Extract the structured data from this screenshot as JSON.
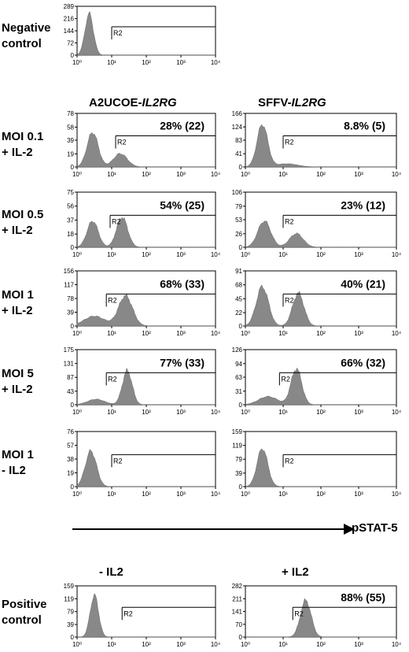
{
  "figure": {
    "col_headers": {
      "left_prefix": "A2UCOE-",
      "left_gene": "IL2RG",
      "right_prefix": "SFFV-",
      "right_gene": "IL2RG"
    },
    "row_labels": {
      "negative": [
        "Negative",
        "control"
      ],
      "moi01": [
        "MOI 0.1",
        "+ IL-2"
      ],
      "moi05": [
        "MOI 0.5",
        "+ IL-2"
      ],
      "moi1": [
        "MOI 1",
        "+ IL-2"
      ],
      "moi5": [
        "MOI 5",
        "+ IL-2"
      ],
      "moi1n": [
        "MOI 1",
        "- IL2"
      ],
      "positive": [
        "Positive",
        "control"
      ]
    },
    "arrow_label": "pSTAT-5",
    "pos_headers": {
      "minus": "- IL2",
      "plus": "+ IL2"
    }
  },
  "chart_data": [
    {
      "id": "neg",
      "type": "area",
      "scale": "log",
      "xlim": [
        1,
        10000
      ],
      "xticks": [
        "10⁰",
        "10¹",
        "10²",
        "10³",
        "10⁴"
      ],
      "yticks": [
        0,
        72,
        144,
        216,
        289
      ],
      "ylim": [
        0,
        289
      ],
      "gate": {
        "label": "R2",
        "start": 10
      },
      "annotation": "",
      "peaks": [
        {
          "center": 0.35,
          "width": 0.12,
          "height": 0.85
        }
      ]
    },
    {
      "id": "a01",
      "type": "area",
      "scale": "log",
      "xlim": [
        1,
        10000
      ],
      "xticks": [
        "10⁰",
        "10¹",
        "10²",
        "10³",
        "10⁴"
      ],
      "yticks": [
        0,
        19,
        39,
        58,
        78
      ],
      "ylim": [
        0,
        78
      ],
      "gate": {
        "label": "R2",
        "start": 13
      },
      "annotation": "28% (22)",
      "peaks": [
        {
          "center": 0.45,
          "width": 0.16,
          "height": 0.65
        },
        {
          "center": 1.25,
          "width": 0.2,
          "height": 0.25
        }
      ]
    },
    {
      "id": "s01",
      "type": "area",
      "scale": "log",
      "xlim": [
        1,
        10000
      ],
      "xticks": [
        "10⁰",
        "10¹",
        "10²",
        "10³",
        "10⁴"
      ],
      "yticks": [
        0,
        41,
        83,
        124,
        166
      ],
      "ylim": [
        0,
        166
      ],
      "gate": {
        "label": "R2",
        "start": 10
      },
      "annotation": "8.8% (5)",
      "peaks": [
        {
          "center": 0.45,
          "width": 0.14,
          "height": 0.8
        },
        {
          "center": 1.1,
          "width": 0.28,
          "height": 0.06
        }
      ]
    },
    {
      "id": "a05",
      "type": "area",
      "scale": "log",
      "xlim": [
        1,
        10000
      ],
      "xticks": [
        "10⁰",
        "10¹",
        "10²",
        "10³",
        "10⁴"
      ],
      "yticks": [
        0,
        18,
        37,
        56,
        75
      ],
      "ylim": [
        0,
        75
      ],
      "gate": {
        "label": "R2",
        "start": 9
      },
      "annotation": "54% (25)",
      "peaks": [
        {
          "center": 0.45,
          "width": 0.16,
          "height": 0.48
        },
        {
          "center": 1.3,
          "width": 0.16,
          "height": 0.55
        }
      ]
    },
    {
      "id": "s05",
      "type": "area",
      "scale": "log",
      "xlim": [
        1,
        10000
      ],
      "xticks": [
        "10⁰",
        "10¹",
        "10²",
        "10³",
        "10⁴"
      ],
      "yticks": [
        0,
        26,
        53,
        79,
        106
      ],
      "ylim": [
        0,
        106
      ],
      "gate": {
        "label": "R2",
        "start": 10
      },
      "annotation": "23% (12)",
      "peaks": [
        {
          "center": 0.5,
          "width": 0.17,
          "height": 0.48
        },
        {
          "center": 1.35,
          "width": 0.18,
          "height": 0.25
        }
      ]
    },
    {
      "id": "a1",
      "type": "area",
      "scale": "log",
      "xlim": [
        1,
        10000
      ],
      "xticks": [
        "10⁰",
        "10¹",
        "10²",
        "10³",
        "10⁴"
      ],
      "yticks": [
        0,
        39,
        78,
        117,
        156
      ],
      "ylim": [
        0,
        156
      ],
      "gate": {
        "label": "R2",
        "start": 7
      },
      "annotation": "68% (33)",
      "peaks": [
        {
          "center": 0.5,
          "width": 0.3,
          "height": 0.18
        },
        {
          "center": 1.4,
          "width": 0.2,
          "height": 0.55
        }
      ]
    },
    {
      "id": "s1",
      "type": "area",
      "scale": "log",
      "xlim": [
        1,
        10000
      ],
      "xticks": [
        "10⁰",
        "10¹",
        "10²",
        "10³",
        "10⁴"
      ],
      "yticks": [
        0,
        22,
        45,
        68,
        91
      ],
      "ylim": [
        0,
        91
      ],
      "gate": {
        "label": "R2",
        "start": 10
      },
      "annotation": "40% (21)",
      "peaks": [
        {
          "center": 0.45,
          "width": 0.16,
          "height": 0.72
        },
        {
          "center": 1.4,
          "width": 0.15,
          "height": 0.6
        }
      ]
    },
    {
      "id": "a5",
      "type": "area",
      "scale": "log",
      "xlim": [
        1,
        10000
      ],
      "xticks": [
        "10⁰",
        "10¹",
        "10²",
        "10³",
        "10⁴"
      ],
      "yticks": [
        0,
        43,
        87,
        131,
        175
      ],
      "ylim": [
        0,
        175
      ],
      "gate": {
        "label": "R2",
        "start": 7
      },
      "annotation": "77% (33)",
      "peaks": [
        {
          "center": 0.55,
          "width": 0.25,
          "height": 0.1
        },
        {
          "center": 1.45,
          "width": 0.14,
          "height": 0.62
        }
      ]
    },
    {
      "id": "s5",
      "type": "area",
      "scale": "log",
      "xlim": [
        1,
        10000
      ],
      "xticks": [
        "10⁰",
        "10¹",
        "10²",
        "10³",
        "10⁴"
      ],
      "yticks": [
        0,
        31,
        63,
        94,
        126
      ],
      "ylim": [
        0,
        126
      ],
      "gate": {
        "label": "R2",
        "start": 8
      },
      "annotation": "66% (32)",
      "peaks": [
        {
          "center": 0.6,
          "width": 0.25,
          "height": 0.15
        },
        {
          "center": 1.35,
          "width": 0.14,
          "height": 0.66
        }
      ]
    },
    {
      "id": "a1n",
      "type": "area",
      "scale": "log",
      "xlim": [
        1,
        10000
      ],
      "xticks": [
        "10⁰",
        "10¹",
        "10²",
        "10³",
        "10⁴"
      ],
      "yticks": [
        0,
        19,
        38,
        57,
        76
      ],
      "ylim": [
        0,
        76
      ],
      "gate": {
        "label": "R2",
        "start": 10
      },
      "annotation": "",
      "peaks": [
        {
          "center": 0.4,
          "width": 0.16,
          "height": 0.65
        }
      ]
    },
    {
      "id": "s1n",
      "type": "area",
      "scale": "log",
      "xlim": [
        1,
        10000
      ],
      "xticks": [
        "10⁰",
        "10¹",
        "10²",
        "10³",
        "10⁴"
      ],
      "yticks": [
        0,
        39,
        79,
        119,
        159
      ],
      "ylim": [
        0,
        159
      ],
      "gate": {
        "label": "R2",
        "start": 10
      },
      "annotation": "",
      "peaks": [
        {
          "center": 0.45,
          "width": 0.14,
          "height": 0.7
        }
      ]
    },
    {
      "id": "posm",
      "type": "area",
      "scale": "log",
      "xlim": [
        1,
        10000
      ],
      "xticks": [
        "10⁰",
        "10¹",
        "10²",
        "10³",
        "10⁴"
      ],
      "yticks": [
        0,
        39,
        79,
        119,
        159
      ],
      "ylim": [
        0,
        159
      ],
      "gate": {
        "label": "R2",
        "start": 20
      },
      "annotation": "",
      "peaks": [
        {
          "center": 0.5,
          "width": 0.12,
          "height": 0.82
        }
      ]
    },
    {
      "id": "posp",
      "type": "area",
      "scale": "log",
      "xlim": [
        1,
        10000
      ],
      "xticks": [
        "10⁰",
        "10¹",
        "10²",
        "10³",
        "10⁴"
      ],
      "yticks": [
        0,
        70,
        141,
        211,
        282
      ],
      "ylim": [
        0,
        282
      ],
      "gate": {
        "label": "R2",
        "start": 18
      },
      "annotation": "88% (55)",
      "peaks": [
        {
          "center": 1.6,
          "width": 0.14,
          "height": 0.72
        }
      ]
    }
  ]
}
